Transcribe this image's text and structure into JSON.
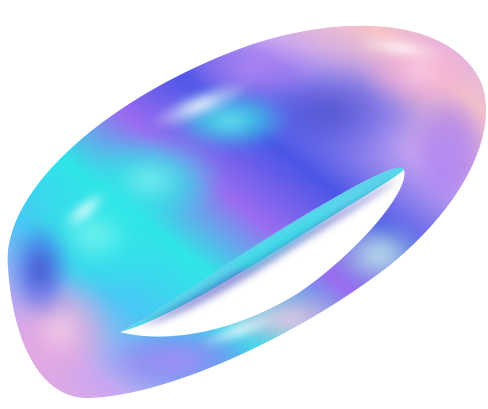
{
  "image": {
    "subject": "holographic-torus",
    "background_color": "#ffffff",
    "palette": {
      "lavender": "#c9a7f2",
      "violet": "#9a6cf0",
      "royal_blue": "#4a55e6",
      "aqua": "#2fe6e6",
      "cyan": "#49c8f5",
      "pink": "#f4a9d6",
      "peach": "#f7c3c8",
      "mint": "#b8f0e0",
      "indigo_shadow": "#3a3fb8",
      "highlight": "#ffffff"
    }
  }
}
